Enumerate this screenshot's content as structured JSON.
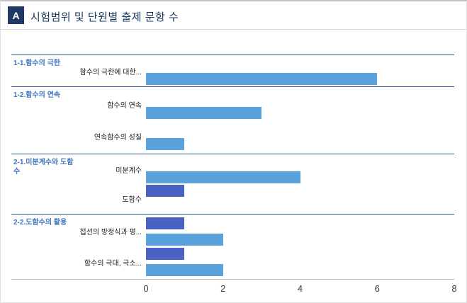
{
  "header": {
    "badge": "A",
    "title": "시험범위 및 단원별 출제 문항 수"
  },
  "chart_data": {
    "type": "bar",
    "orientation": "horizontal",
    "title": "시험범위 및 단원별 출제 문항 수",
    "xlim": [
      0,
      8
    ],
    "x_ticks": [
      "0",
      "2",
      "4",
      "6",
      "8"
    ],
    "grid": false,
    "legend": "none",
    "series": [
      {
        "name": "series-dark",
        "color": "#4A63C3"
      },
      {
        "name": "series-light",
        "color": "#5AA2DC"
      }
    ],
    "groups": [
      {
        "section": "1-1.함수의 극한",
        "categories": [
          {
            "label": "함수의 극한에 대한...",
            "values": [
              0,
              6
            ]
          }
        ]
      },
      {
        "section": "1-2.함수의 연속",
        "categories": [
          {
            "label": "함수의 연속",
            "values": [
              0,
              3
            ]
          },
          {
            "label": "연속함수의 성질",
            "values": [
              0,
              1
            ]
          }
        ]
      },
      {
        "section": "2-1.미분계수와 도함수",
        "categories": [
          {
            "label": "미분계수",
            "values": [
              0,
              4
            ]
          },
          {
            "label": "도함수",
            "values": [
              1,
              0
            ]
          }
        ]
      },
      {
        "section": "2-2.도함수의 활용",
        "categories": [
          {
            "label": "접선의 방정식과 평...",
            "values": [
              1,
              2
            ]
          },
          {
            "label": "함수의 극대, 극소...",
            "values": [
              1,
              2
            ]
          }
        ]
      }
    ],
    "colors": {
      "section_label_text": "#4176BE",
      "section_line": "#33549B",
      "bar_dark": "#4A63C3",
      "bar_light": "#5AA2DC",
      "badge_bg": "#1F3864",
      "title_text": "#17375E"
    }
  }
}
